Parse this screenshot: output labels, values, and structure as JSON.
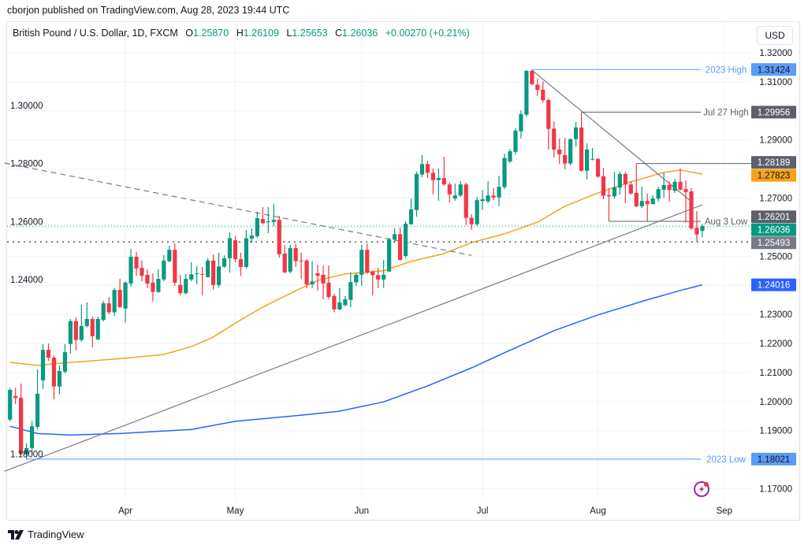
{
  "publish_line": "cborjon published on TradingView.com, Aug 28, 2023 19:44 UTC",
  "legend": {
    "symbol": "British Pound / U.S. Dollar, 1D, FXCM",
    "o_label": "O",
    "o": "1.25870",
    "h_label": "H",
    "h": "1.26109",
    "l_label": "L",
    "l": "1.25653",
    "c_label": "C",
    "c": "1.26036",
    "change": "+0.00270 (+0.21%)"
  },
  "currency_button": "USD",
  "footer": {
    "brand": "TradingView"
  },
  "colors": {
    "up": "#089981",
    "down": "#f23645",
    "ma50": "#f7a21b",
    "ma200": "#2962ff",
    "level_blue": "#5b9cf6",
    "level_gray": "#5d606b",
    "trend": "#787b86",
    "grid": "#f0f3fa"
  },
  "icons": {
    "alert": "lightning-bolt-icon",
    "logo": "tradingview-logo-icon"
  },
  "chart_data": {
    "type": "candlestick",
    "title": "British Pound / U.S. Dollar, 1D, FXCM",
    "ylim": [
      1.1655,
      1.3228
    ],
    "grid": true,
    "y_ticks": [
      "1.32000",
      "1.31000",
      "1.30000",
      "1.29000",
      "1.28000",
      "1.27000",
      "1.26000",
      "1.25000",
      "1.24000",
      "1.23000",
      "1.22000",
      "1.21000",
      "1.20000",
      "1.19000",
      "1.18000",
      "1.17000"
    ],
    "x_ticks": [
      {
        "label": "Apr",
        "date": "2023-04-03"
      },
      {
        "label": "May",
        "date": "2023-05-01"
      },
      {
        "label": "Jun",
        "date": "2023-06-01"
      },
      {
        "label": "Jul",
        "date": "2023-07-03"
      },
      {
        "label": "Aug",
        "date": "2023-08-01"
      },
      {
        "label": "Sep",
        "date": "2023-09-01"
      }
    ],
    "candles_columns": [
      "date",
      "open",
      "high",
      "low",
      "close"
    ],
    "candles": [
      [
        "2023-03-03",
        1.1938,
        1.2046,
        1.1932,
        1.204
      ],
      [
        "2023-03-06",
        1.2019,
        1.2047,
        1.1991,
        1.2012
      ],
      [
        "2023-03-07",
        1.2013,
        1.2062,
        1.1818,
        1.1819
      ],
      [
        "2023-03-08",
        1.1819,
        1.1856,
        1.1802,
        1.184
      ],
      [
        "2023-03-09",
        1.184,
        1.1934,
        1.1823,
        1.1915
      ],
      [
        "2023-03-10",
        1.1913,
        1.2111,
        1.1905,
        1.2027
      ],
      [
        "2023-03-13",
        1.2073,
        1.2198,
        1.2043,
        1.2178
      ],
      [
        "2023-03-14",
        1.2178,
        1.22,
        1.214,
        1.2151
      ],
      [
        "2023-03-15",
        1.2151,
        1.2159,
        1.2008,
        1.2052
      ],
      [
        "2023-03-16",
        1.2052,
        1.2124,
        1.2025,
        1.2105
      ],
      [
        "2023-03-17",
        1.2103,
        1.2198,
        1.2097,
        1.217
      ],
      [
        "2023-03-20",
        1.2198,
        1.2284,
        1.2165,
        1.2277
      ],
      [
        "2023-03-21",
        1.2277,
        1.2289,
        1.2176,
        1.2212
      ],
      [
        "2023-03-22",
        1.2212,
        1.2333,
        1.2205,
        1.226
      ],
      [
        "2023-03-23",
        1.226,
        1.2341,
        1.2255,
        1.2284
      ],
      [
        "2023-03-24",
        1.2284,
        1.2292,
        1.2187,
        1.2225
      ],
      [
        "2023-03-27",
        1.2214,
        1.2292,
        1.2211,
        1.2284
      ],
      [
        "2023-03-28",
        1.2281,
        1.2346,
        1.2276,
        1.2338
      ],
      [
        "2023-03-29",
        1.2338,
        1.236,
        1.23,
        1.2307
      ],
      [
        "2023-03-30",
        1.2307,
        1.2391,
        1.2295,
        1.2384
      ],
      [
        "2023-03-31",
        1.2384,
        1.2422,
        1.2322,
        1.2325
      ],
      [
        "2023-04-03",
        1.232,
        1.2414,
        1.2271,
        1.2409
      ],
      [
        "2023-04-04",
        1.2406,
        1.2525,
        1.2395,
        1.2498
      ],
      [
        "2023-04-05",
        1.2498,
        1.2514,
        1.2433,
        1.2458
      ],
      [
        "2023-04-06",
        1.246,
        1.2485,
        1.2414,
        1.2433
      ],
      [
        "2023-04-07",
        1.2436,
        1.2455,
        1.239,
        1.2406
      ],
      [
        "2023-04-10",
        1.2409,
        1.2441,
        1.2344,
        1.2377
      ],
      [
        "2023-04-11",
        1.2377,
        1.2455,
        1.2374,
        1.2422
      ],
      [
        "2023-04-12",
        1.242,
        1.2504,
        1.2414,
        1.2485
      ],
      [
        "2023-04-13",
        1.2483,
        1.2536,
        1.2479,
        1.2522
      ],
      [
        "2023-04-14",
        1.2522,
        1.2544,
        1.2398,
        1.2409
      ],
      [
        "2023-04-17",
        1.2401,
        1.2436,
        1.2365,
        1.2373
      ],
      [
        "2023-04-18",
        1.2373,
        1.2439,
        1.2368,
        1.2422
      ],
      [
        "2023-04-19",
        1.242,
        1.2479,
        1.2414,
        1.2438
      ],
      [
        "2023-04-20",
        1.2439,
        1.2466,
        1.2403,
        1.2441
      ],
      [
        "2023-04-21",
        1.2439,
        1.2463,
        1.2365,
        1.2437
      ],
      [
        "2023-04-24",
        1.2428,
        1.2493,
        1.2427,
        1.2485
      ],
      [
        "2023-04-25",
        1.2485,
        1.2506,
        1.2385,
        1.2401
      ],
      [
        "2023-04-26",
        1.2401,
        1.2512,
        1.2392,
        1.2465
      ],
      [
        "2023-04-27",
        1.2464,
        1.2503,
        1.246,
        1.2493
      ],
      [
        "2023-04-28",
        1.2493,
        1.2582,
        1.2444,
        1.2562
      ],
      [
        "2023-05-01",
        1.2555,
        1.2569,
        1.2479,
        1.249
      ],
      [
        "2023-05-02",
        1.249,
        1.2512,
        1.2433,
        1.2463
      ],
      [
        "2023-05-03",
        1.2463,
        1.259,
        1.2457,
        1.2562
      ],
      [
        "2023-05-04",
        1.2561,
        1.2596,
        1.2547,
        1.2571
      ],
      [
        "2023-05-05",
        1.2569,
        1.2653,
        1.2563,
        1.2631
      ],
      [
        "2023-05-08",
        1.2628,
        1.2669,
        1.2609,
        1.2614
      ],
      [
        "2023-05-09",
        1.2617,
        1.2669,
        1.2579,
        1.262
      ],
      [
        "2023-05-10",
        1.2618,
        1.268,
        1.2604,
        1.2625
      ],
      [
        "2023-05-11",
        1.2625,
        1.2639,
        1.2495,
        1.2507
      ],
      [
        "2023-05-12",
        1.2509,
        1.2539,
        1.2441,
        1.2445
      ],
      [
        "2023-05-15",
        1.2447,
        1.2539,
        1.2441,
        1.2528
      ],
      [
        "2023-05-16",
        1.2528,
        1.2542,
        1.2463,
        1.2483
      ],
      [
        "2023-05-17",
        1.2485,
        1.2512,
        1.2422,
        1.2484
      ],
      [
        "2023-05-18",
        1.2485,
        1.249,
        1.239,
        1.2403
      ],
      [
        "2023-05-19",
        1.2403,
        1.2483,
        1.239,
        1.2413
      ],
      [
        "2023-05-22",
        1.2441,
        1.2471,
        1.2382,
        1.2433
      ],
      [
        "2023-05-23",
        1.2436,
        1.2468,
        1.2352,
        1.2406
      ],
      [
        "2023-05-24",
        1.2409,
        1.2468,
        1.2352,
        1.236
      ],
      [
        "2023-05-25",
        1.2363,
        1.2371,
        1.2307,
        1.2317
      ],
      [
        "2023-05-26",
        1.2317,
        1.239,
        1.2314,
        1.2341
      ],
      [
        "2023-05-29",
        1.2332,
        1.2363,
        1.2327,
        1.2352
      ],
      [
        "2023-05-30",
        1.235,
        1.2444,
        1.2325,
        1.2411
      ],
      [
        "2023-05-31",
        1.241,
        1.2441,
        1.2398,
        1.2436
      ],
      [
        "2023-06-01",
        1.2436,
        1.2539,
        1.2398,
        1.2522
      ],
      [
        "2023-06-02",
        1.2522,
        1.2544,
        1.2439,
        1.2444
      ],
      [
        "2023-06-05",
        1.2447,
        1.2452,
        1.2365,
        1.2435
      ],
      [
        "2023-06-06",
        1.2435,
        1.246,
        1.239,
        1.242
      ],
      [
        "2023-06-07",
        1.242,
        1.2487,
        1.2392,
        1.2436
      ],
      [
        "2023-06-08",
        1.2447,
        1.2563,
        1.246,
        1.2558
      ],
      [
        "2023-06-09",
        1.2557,
        1.2596,
        1.2547,
        1.2576
      ],
      [
        "2023-06-12",
        1.2576,
        1.2598,
        1.2485,
        1.2487
      ],
      [
        "2023-06-13",
        1.2501,
        1.262,
        1.2493,
        1.2612
      ],
      [
        "2023-06-14",
        1.261,
        1.2699,
        1.2609,
        1.2661
      ],
      [
        "2023-06-15",
        1.2659,
        1.2791,
        1.2636,
        1.2783
      ],
      [
        "2023-06-16",
        1.2781,
        1.2848,
        1.2772,
        1.2817
      ],
      [
        "2023-06-19",
        1.2817,
        1.2828,
        1.2769,
        1.2787
      ],
      [
        "2023-06-20",
        1.2787,
        1.2802,
        1.2713,
        1.2762
      ],
      [
        "2023-06-21",
        1.2762,
        1.2802,
        1.2691,
        1.2769
      ],
      [
        "2023-06-22",
        1.2769,
        1.2842,
        1.2742,
        1.2747
      ],
      [
        "2023-06-23",
        1.2747,
        1.2754,
        1.2686,
        1.2713
      ],
      [
        "2023-06-26",
        1.2699,
        1.275,
        1.2691,
        1.2709
      ],
      [
        "2023-06-27",
        1.2709,
        1.2758,
        1.2704,
        1.2747
      ],
      [
        "2023-06-28",
        1.2747,
        1.2753,
        1.2607,
        1.2632
      ],
      [
        "2023-06-29",
        1.2632,
        1.2644,
        1.2591,
        1.261
      ],
      [
        "2023-06-30",
        1.261,
        1.2704,
        1.2604,
        1.2693
      ],
      [
        "2023-07-03",
        1.269,
        1.2728,
        1.2659,
        1.2696
      ],
      [
        "2023-07-04",
        1.2689,
        1.2758,
        1.2683,
        1.2709
      ],
      [
        "2023-07-05",
        1.2709,
        1.2734,
        1.2693,
        1.2702
      ],
      [
        "2023-07-06",
        1.2702,
        1.2777,
        1.2672,
        1.2739
      ],
      [
        "2023-07-07",
        1.2738,
        1.2853,
        1.2731,
        1.2838
      ],
      [
        "2023-07-10",
        1.2826,
        1.2869,
        1.282,
        1.2861
      ],
      [
        "2023-07-11",
        1.2859,
        1.294,
        1.285,
        1.2932
      ],
      [
        "2023-07-12",
        1.293,
        1.3002,
        1.2905,
        1.2989
      ],
      [
        "2023-07-13",
        1.2987,
        1.314,
        1.298,
        1.3138
      ],
      [
        "2023-07-14",
        1.3138,
        1.31424,
        1.3088,
        1.3092
      ],
      [
        "2023-07-17",
        1.309,
        1.3111,
        1.3051,
        1.3072
      ],
      [
        "2023-07-18",
        1.3073,
        1.3102,
        1.3029,
        1.3037
      ],
      [
        "2023-07-19",
        1.3037,
        1.3043,
        1.2867,
        1.2938
      ],
      [
        "2023-07-20",
        1.2939,
        1.2964,
        1.284,
        1.2867
      ],
      [
        "2023-07-21",
        1.2867,
        1.2905,
        1.2818,
        1.2851
      ],
      [
        "2023-07-24",
        1.2848,
        1.2907,
        1.2799,
        1.2819
      ],
      [
        "2023-07-25",
        1.2819,
        1.2905,
        1.2812,
        1.2903
      ],
      [
        "2023-07-26",
        1.2903,
        1.2962,
        1.2877,
        1.2943
      ],
      [
        "2023-07-27",
        1.2943,
        1.29956,
        1.2791,
        1.2794
      ],
      [
        "2023-07-28",
        1.2794,
        1.2888,
        1.2764,
        1.2867
      ],
      [
        "2023-07-31",
        1.2833,
        1.2872,
        1.283,
        1.2835
      ],
      [
        "2023-08-01",
        1.2835,
        1.2837,
        1.2769,
        1.2774
      ],
      [
        "2023-08-02",
        1.2775,
        1.2804,
        1.2696,
        1.2708
      ],
      [
        "2023-08-03",
        1.271,
        1.2734,
        1.26201,
        1.2706
      ],
      [
        "2023-08-04",
        1.2706,
        1.2791,
        1.2699,
        1.2737
      ],
      [
        "2023-08-07",
        1.2736,
        1.2791,
        1.2712,
        1.2783
      ],
      [
        "2023-08-08",
        1.2783,
        1.2789,
        1.2683,
        1.2747
      ],
      [
        "2023-08-09",
        1.2747,
        1.2758,
        1.2712,
        1.2716
      ],
      [
        "2023-08-10",
        1.2718,
        1.28189,
        1.2669,
        1.2672
      ],
      [
        "2023-08-11",
        1.2672,
        1.2739,
        1.2666,
        1.269
      ],
      [
        "2023-08-14",
        1.269,
        1.2715,
        1.262,
        1.2679
      ],
      [
        "2023-08-15",
        1.2679,
        1.271,
        1.2685,
        1.2699
      ],
      [
        "2023-08-16",
        1.2698,
        1.2739,
        1.2688,
        1.2731
      ],
      [
        "2023-08-17",
        1.2729,
        1.2788,
        1.2701,
        1.2745
      ],
      [
        "2023-08-18",
        1.2745,
        1.2758,
        1.2688,
        1.2728
      ],
      [
        "2023-08-21",
        1.2725,
        1.2766,
        1.2718,
        1.2756
      ],
      [
        "2023-08-22",
        1.2756,
        1.2802,
        1.2726,
        1.2729
      ],
      [
        "2023-08-23",
        1.2731,
        1.2761,
        1.2615,
        1.2721
      ],
      [
        "2023-08-24",
        1.2723,
        1.2734,
        1.259,
        1.2596
      ],
      [
        "2023-08-25",
        1.2598,
        1.2655,
        1.25493,
        1.2575
      ],
      [
        "2023-08-28",
        1.2587,
        1.26109,
        1.25653,
        1.26036
      ]
    ],
    "moving_averages": [
      {
        "key": "ma50",
        "color": "#f7a21b",
        "points": [
          [
            "2023-03-03",
            1.2135
          ],
          [
            "2023-03-10",
            1.2124
          ],
          [
            "2023-03-15",
            1.213
          ],
          [
            "2023-04-03",
            1.2149
          ],
          [
            "2023-04-12",
            1.2162
          ],
          [
            "2023-04-19",
            1.2189
          ],
          [
            "2023-04-25",
            1.2222
          ],
          [
            "2023-05-01",
            1.227
          ],
          [
            "2023-05-08",
            1.2325
          ],
          [
            "2023-05-12",
            1.2363
          ],
          [
            "2023-05-22",
            1.2417
          ],
          [
            "2023-05-29",
            1.2439
          ],
          [
            "2023-06-07",
            1.245
          ],
          [
            "2023-06-14",
            1.2482
          ],
          [
            "2023-06-22",
            1.2509
          ],
          [
            "2023-06-29",
            1.2547
          ],
          [
            "2023-07-07",
            1.2577
          ],
          [
            "2023-07-17",
            1.2617
          ],
          [
            "2023-07-24",
            1.2672
          ],
          [
            "2023-08-01",
            1.2718
          ],
          [
            "2023-08-09",
            1.2756
          ],
          [
            "2023-08-17",
            1.2788
          ],
          [
            "2023-08-22",
            1.2797
          ],
          [
            "2023-08-28",
            1.27823
          ]
        ]
      },
      {
        "key": "ma200",
        "color": "#2962ff",
        "points": [
          [
            "2023-03-03",
            1.1915
          ],
          [
            "2023-03-10",
            1.189
          ],
          [
            "2023-03-20",
            1.1885
          ],
          [
            "2023-03-31",
            1.189
          ],
          [
            "2023-04-19",
            1.1904
          ],
          [
            "2023-05-01",
            1.1932
          ],
          [
            "2023-05-17",
            1.1953
          ],
          [
            "2023-05-26",
            1.1967
          ],
          [
            "2023-06-07",
            1.1999
          ],
          [
            "2023-06-19",
            1.2054
          ],
          [
            "2023-06-29",
            1.2116
          ],
          [
            "2023-07-07",
            1.2168
          ],
          [
            "2023-07-20",
            1.2244
          ],
          [
            "2023-08-01",
            1.2298
          ],
          [
            "2023-08-14",
            1.235
          ],
          [
            "2023-08-22",
            1.2382
          ],
          [
            "2023-08-28",
            1.24016
          ]
        ]
      }
    ],
    "trendlines": [
      {
        "style": "solid",
        "from": [
          "2023-03-02",
          1.176
        ],
        "to": [
          "2023-08-28",
          1.2677
        ]
      },
      {
        "style": "dashed",
        "from": [
          "2023-03-02",
          1.2821
        ],
        "to": [
          "2023-06-29",
          1.2503
        ]
      },
      {
        "style": "solid",
        "from": [
          "2023-07-14",
          1.314
        ],
        "to": [
          "2023-08-24",
          1.2688
        ]
      }
    ],
    "levels": [
      {
        "label": "2023 High",
        "price": 1.31424,
        "tag": "1.31424",
        "from": "2023-07-14",
        "style": "blue"
      },
      {
        "label": "Jul 27 High",
        "price": 1.29956,
        "tag": "1.29956",
        "from": "2023-07-27",
        "style": "gray"
      },
      {
        "label": "",
        "price": 1.28189,
        "tag": "1.28189",
        "from": "2023-08-10",
        "style": "gray"
      },
      {
        "label": "Aug 3 Low",
        "price": 1.26201,
        "tag": "1.26201",
        "from": "2023-08-03",
        "style": "gray"
      },
      {
        "label": "2023 Low",
        "price": 1.18021,
        "tag": "1.18021",
        "from": "2023-03-08",
        "style": "blue"
      }
    ],
    "price_tags": [
      {
        "price": 1.27823,
        "tag": "1.27823",
        "bg": "#f7a21b",
        "fg": "#131722"
      },
      {
        "price": 1.26036,
        "tag": "1.26036",
        "bg": "#089981",
        "fg": "#ffffff",
        "dotted_line": "#089981"
      },
      {
        "price": 1.25493,
        "tag": "1.25493",
        "bg": "#787b86",
        "fg": "#ffffff",
        "dotted_line": "#787b86"
      },
      {
        "price": 1.24016,
        "tag": "1.24016",
        "bg": "#2962ff",
        "fg": "#ffffff"
      }
    ]
  }
}
